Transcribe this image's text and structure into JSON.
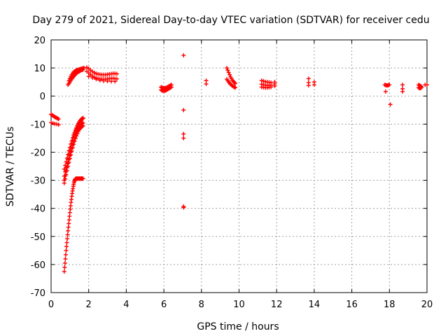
{
  "chart_data": {
    "type": "scatter",
    "title": "Day 279 of 2021, Sidereal Day-to-day VTEC variation (SDTVAR) for receiver cedu",
    "xlabel": "GPS time / hours",
    "ylabel": "SDTVAR / TECUs",
    "xlim": [
      0,
      20
    ],
    "ylim": [
      -70,
      20
    ],
    "xticks": [
      0,
      2,
      4,
      6,
      8,
      10,
      12,
      14,
      16,
      18,
      20
    ],
    "yticks": [
      -70,
      -60,
      -50,
      -40,
      -30,
      -20,
      -10,
      0,
      10,
      20
    ],
    "grid": true,
    "marker": "+",
    "color": "#ff0000",
    "series": [
      {
        "name": "SDTVAR",
        "x": [
          0.0,
          0.05,
          0.1,
          0.15,
          0.2,
          0.25,
          0.3,
          0.35,
          0.4,
          0.0,
          0.1,
          0.2,
          0.3,
          0.4,
          0.7,
          0.75,
          0.8,
          0.85,
          0.9,
          0.95,
          1.0,
          1.05,
          1.1,
          1.15,
          1.2,
          1.25,
          1.3,
          1.35,
          1.4,
          1.45,
          1.5,
          1.55,
          1.6,
          1.65,
          1.7,
          0.7,
          0.75,
          0.8,
          0.85,
          0.9,
          0.95,
          1.0,
          1.05,
          1.1,
          1.15,
          1.2,
          1.25,
          1.3,
          1.35,
          1.4,
          1.45,
          1.5,
          1.55,
          1.6,
          1.65,
          1.7,
          0.7,
          0.75,
          0.8,
          0.85,
          0.9,
          0.95,
          1.0,
          1.05,
          1.1,
          1.15,
          1.2,
          1.25,
          1.3,
          1.35,
          1.4,
          1.45,
          1.5,
          1.55,
          1.6,
          1.65,
          1.7,
          0.7,
          0.75,
          0.8,
          0.85,
          0.9,
          0.95,
          1.0,
          1.05,
          1.1,
          1.15,
          1.2,
          1.25,
          1.3,
          1.35,
          1.4,
          1.45,
          1.5,
          1.55,
          1.6,
          1.65,
          1.7,
          0.95,
          1.0,
          1.05,
          1.1,
          1.15,
          1.2,
          1.25,
          1.3,
          1.35,
          1.4,
          1.45,
          1.5,
          1.55,
          1.6,
          1.65,
          1.7,
          1.75,
          0.9,
          0.95,
          1.0,
          1.05,
          1.1,
          1.15,
          1.2,
          1.25,
          1.3,
          1.35,
          1.4,
          1.45,
          1.5,
          1.55,
          1.6,
          1.65,
          1.7,
          1.9,
          2.0,
          2.1,
          2.2,
          2.3,
          2.4,
          2.5,
          2.6,
          2.7,
          2.8,
          2.9,
          3.0,
          3.1,
          3.2,
          3.3,
          3.4,
          3.5,
          1.9,
          2.0,
          2.1,
          2.2,
          2.3,
          2.4,
          2.5,
          2.6,
          2.7,
          2.8,
          2.9,
          3.0,
          3.1,
          3.2,
          3.3,
          3.4,
          3.5,
          2.0,
          2.2,
          2.4,
          2.6,
          2.8,
          3.0,
          3.2,
          3.4,
          0.7,
          0.72,
          0.74,
          0.76,
          0.78,
          0.8,
          0.82,
          0.84,
          0.86,
          0.88,
          0.9,
          0.92,
          0.94,
          0.96,
          0.98,
          1.0,
          1.02,
          1.04,
          1.06,
          1.08,
          1.1,
          1.12,
          1.14,
          1.16,
          1.18,
          1.2,
          1.22,
          1.24,
          1.26,
          1.28,
          1.3,
          1.32,
          1.34,
          1.36,
          1.38,
          1.4,
          1.42,
          1.44,
          1.46,
          1.48,
          1.5,
          1.52,
          1.54,
          1.56,
          1.58,
          1.6,
          1.62,
          1.64,
          1.66,
          1.68,
          1.7,
          5.85,
          5.9,
          5.95,
          6.0,
          6.05,
          6.1,
          6.15,
          6.2,
          6.25,
          6.3,
          6.35,
          6.4,
          5.85,
          5.9,
          5.95,
          6.0,
          6.05,
          6.1,
          6.15,
          6.2,
          6.25,
          6.3,
          6.35,
          6.4,
          7.05,
          7.05,
          7.05,
          7.05,
          7.05,
          7.05,
          8.25,
          8.25,
          9.35,
          9.4,
          9.45,
          9.5,
          9.55,
          9.6,
          9.65,
          9.7,
          9.75,
          9.8,
          9.35,
          9.4,
          9.45,
          9.5,
          9.55,
          9.6,
          9.65,
          9.7,
          9.75,
          9.8,
          11.2,
          11.3,
          11.4,
          11.5,
          11.6,
          11.7,
          11.9,
          11.2,
          11.3,
          11.4,
          11.5,
          11.6,
          11.7,
          11.9,
          11.2,
          11.3,
          11.4,
          11.5,
          11.6,
          11.7,
          11.9,
          13.7,
          13.7,
          13.7,
          14.0,
          14.0,
          17.75,
          17.8,
          17.85,
          17.9,
          17.95,
          18.0,
          17.8,
          18.05,
          18.7,
          18.7,
          18.7,
          19.55,
          19.6,
          19.65,
          19.7,
          19.55,
          19.6,
          19.65,
          19.7,
          19.9,
          20.0
        ],
        "y": [
          -6.5,
          -6.8,
          -7.0,
          -7.2,
          -7.5,
          -7.6,
          -7.8,
          -8.0,
          -8.2,
          -9.5,
          -9.7,
          -9.9,
          -10.0,
          -10.2,
          -28.5,
          -27.0,
          -25.5,
          -24.0,
          -22.5,
          -21.0,
          -19.6,
          -18.3,
          -17.0,
          -15.8,
          -14.6,
          -13.5,
          -12.5,
          -11.6,
          -10.8,
          -10.0,
          -9.4,
          -8.9,
          -8.5,
          -8.2,
          -8.0,
          -30.0,
          -28.5,
          -27.0,
          -25.5,
          -24.0,
          -22.6,
          -21.2,
          -19.9,
          -18.6,
          -17.4,
          -16.2,
          -15.1,
          -14.1,
          -13.2,
          -12.4,
          -11.6,
          -11.0,
          -10.5,
          -10.1,
          -9.8,
          -9.6,
          -31.0,
          -29.5,
          -28.0,
          -26.5,
          -25.0,
          -23.6,
          -22.2,
          -20.9,
          -19.6,
          -18.4,
          -17.2,
          -16.1,
          -15.1,
          -14.2,
          -13.4,
          -12.6,
          -12.0,
          -11.5,
          -11.1,
          -10.8,
          -10.6,
          -26.0,
          -24.7,
          -23.4,
          -22.1,
          -20.8,
          -19.5,
          -18.3,
          -17.1,
          -16.0,
          -14.9,
          -13.9,
          -13.0,
          -12.1,
          -11.3,
          -10.5,
          -9.8,
          -9.2,
          -8.7,
          -8.3,
          -8.0,
          -7.8,
          5.5,
          6.3,
          7.0,
          7.6,
          8.1,
          8.5,
          8.8,
          9.0,
          9.2,
          9.3,
          9.4,
          9.5,
          9.6,
          9.7,
          9.8,
          9.9,
          10.0,
          4.0,
          4.5,
          5.0,
          5.6,
          6.1,
          6.6,
          7.0,
          7.4,
          7.8,
          8.1,
          8.4,
          8.6,
          8.8,
          9.0,
          9.2,
          9.3,
          9.4,
          10.2,
          9.8,
          9.2,
          8.7,
          8.3,
          8.0,
          7.8,
          7.7,
          7.6,
          7.6,
          7.6,
          7.7,
          7.8,
          7.9,
          8.0,
          8.0,
          7.9,
          8.8,
          8.2,
          7.6,
          7.1,
          6.7,
          6.4,
          6.2,
          6.1,
          6.0,
          6.0,
          6.0,
          6.1,
          6.2,
          6.3,
          6.3,
          6.2,
          6.1,
          7.0,
          6.5,
          6.0,
          5.6,
          5.4,
          5.3,
          5.2,
          5.2,
          -62.5,
          -61.0,
          -59.5,
          -58.0,
          -56.5,
          -55.0,
          -53.6,
          -52.2,
          -50.8,
          -49.4,
          -48.0,
          -46.7,
          -45.4,
          -44.1,
          -42.8,
          -41.5,
          -40.3,
          -39.1,
          -37.9,
          -36.8,
          -35.7,
          -34.7,
          -33.8,
          -33.0,
          -32.2,
          -31.5,
          -30.9,
          -30.4,
          -30.0,
          -29.7,
          -29.5,
          -29.4,
          -29.4,
          -29.4,
          -29.4,
          -29.4,
          -29.4,
          -29.4,
          -29.4,
          -29.4,
          -29.4,
          -29.4,
          -29.4,
          -29.4,
          -29.4,
          -29.4,
          -29.4,
          -29.4,
          -29.4,
          -29.4,
          -29.4,
          3.2,
          3.0,
          2.9,
          2.8,
          2.8,
          2.9,
          3.0,
          3.2,
          3.4,
          3.6,
          3.8,
          4.0,
          2.2,
          2.0,
          1.9,
          1.9,
          1.9,
          2.0,
          2.2,
          2.4,
          2.6,
          2.8,
          3.0,
          3.2,
          14.5,
          -5.0,
          -13.5,
          -15.0,
          -39.3,
          -39.7,
          5.5,
          4.3,
          10.0,
          9.2,
          8.4,
          7.6,
          6.8,
          6.2,
          5.6,
          5.2,
          4.8,
          4.5,
          6.0,
          5.5,
          5.0,
          4.6,
          4.2,
          3.9,
          3.6,
          3.4,
          3.2,
          3.0,
          5.5,
          5.3,
          5.1,
          5.0,
          4.9,
          4.8,
          5.0,
          4.2,
          4.0,
          3.9,
          3.8,
          3.8,
          3.9,
          4.3,
          3.2,
          3.1,
          3.0,
          3.0,
          3.1,
          3.2,
          3.6,
          6.2,
          4.8,
          3.8,
          5.0,
          4.0,
          4.0,
          3.9,
          3.8,
          3.8,
          3.9,
          4.0,
          1.6,
          -3.0,
          4.0,
          2.6,
          1.6,
          4.0,
          3.8,
          3.6,
          3.4,
          3.0,
          2.8,
          2.8,
          3.0,
          4.0,
          4.0
        ]
      }
    ]
  }
}
